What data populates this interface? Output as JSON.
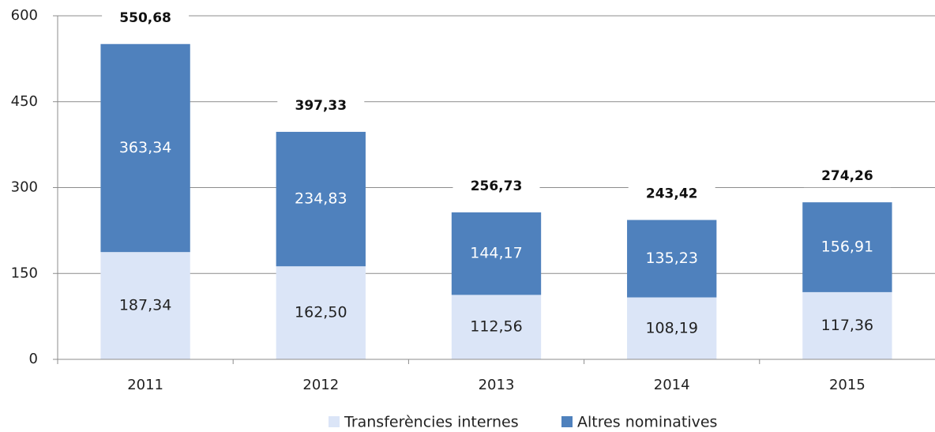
{
  "chart_data": {
    "type": "stacked_bar",
    "categories": [
      "2011",
      "2012",
      "2013",
      "2014",
      "2015"
    ],
    "series": [
      {
        "name": "Transferències internes",
        "color": "#dbe5f7",
        "label_color": "#222222",
        "values": [
          187.34,
          162.5,
          112.56,
          108.19,
          117.36
        ],
        "value_labels": [
          "187,34",
          "162,50",
          "112,56",
          "108,19",
          "117,36"
        ]
      },
      {
        "name": "Altres nominatives",
        "color": "#4f81bd",
        "label_color": "#ffffff",
        "values": [
          363.34,
          234.83,
          144.17,
          135.23,
          156.91
        ],
        "value_labels": [
          "363,34",
          "234,83",
          "144,17",
          "135,23",
          "156,91"
        ]
      }
    ],
    "total_labels": [
      "550,68",
      "397,33",
      "256,73",
      "243,42",
      "274,26"
    ],
    "ylim": [
      0,
      600
    ],
    "yticks": [
      0,
      150,
      300,
      450,
      600
    ],
    "grid": true,
    "legend": "bottom"
  }
}
